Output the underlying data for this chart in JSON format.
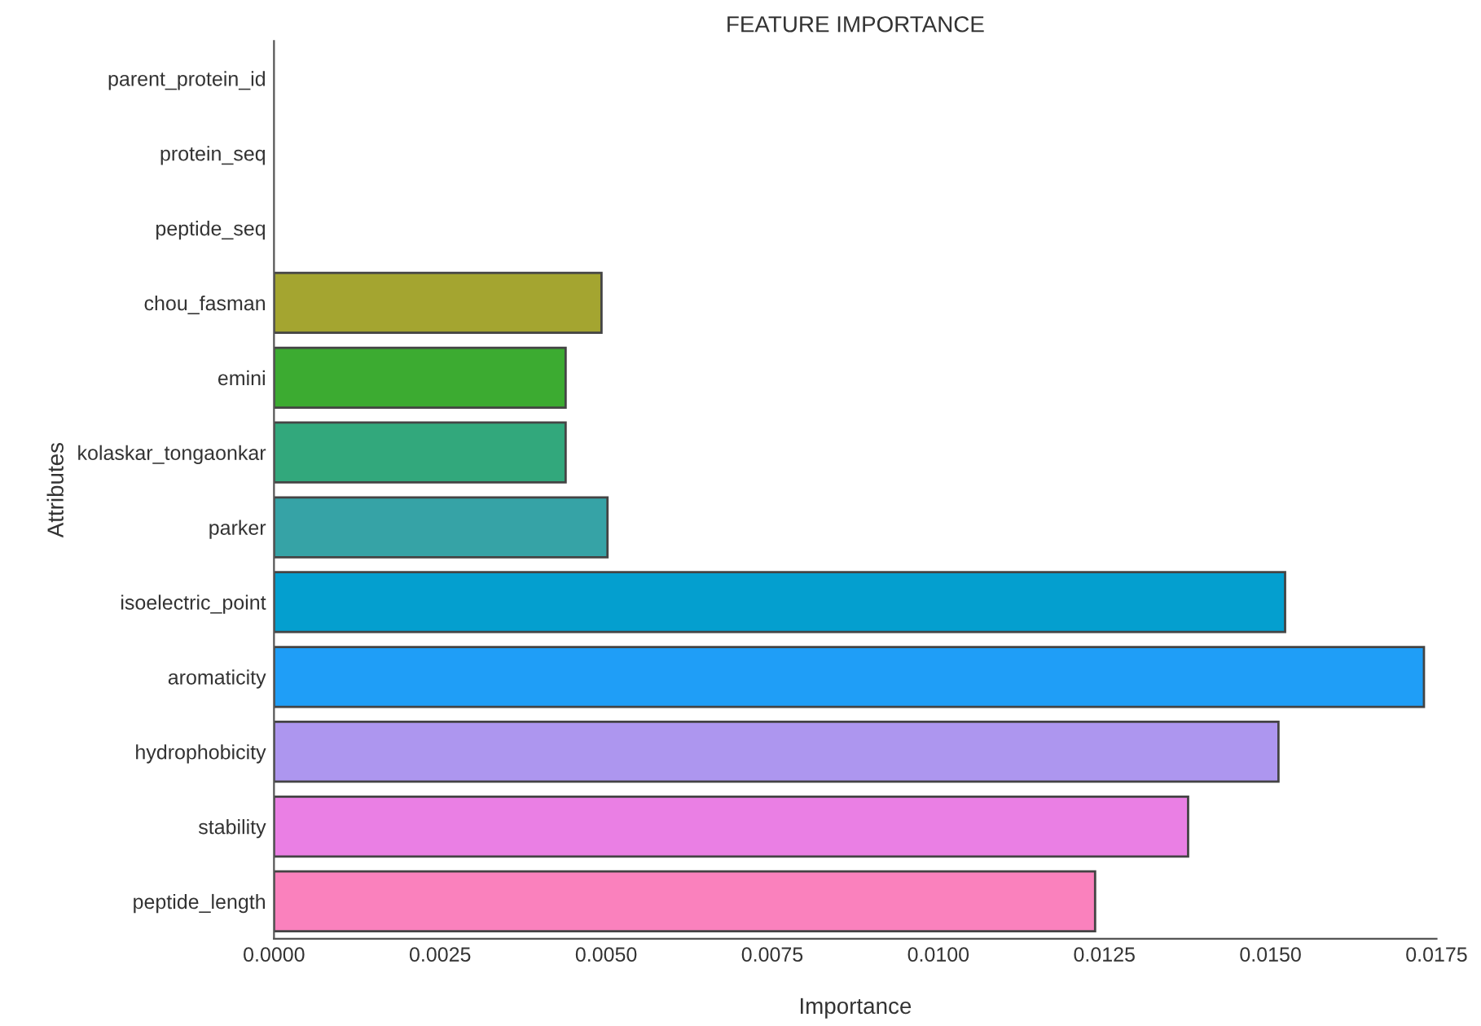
{
  "chart_data": {
    "type": "bar",
    "orientation": "horizontal",
    "title": "FEATURE IMPORTANCE",
    "xlabel": "Importance",
    "ylabel": "Attributes",
    "categories": [
      "parent_protein_id",
      "protein_seq",
      "peptide_seq",
      "chou_fasman",
      "emini",
      "kolaskar_tongaonkar",
      "parker",
      "isoelectric_point",
      "aromaticity",
      "hydrophobicity",
      "stability",
      "peptide_length"
    ],
    "values": [
      0,
      0,
      0,
      0.00493,
      0.00439,
      0.00439,
      0.00502,
      0.01522,
      0.01731,
      0.01512,
      0.01376,
      0.01236
    ],
    "colors": [
      null,
      null,
      null,
      "#a4a530",
      "#3cab31",
      "#32a87c",
      "#36a3a6",
      "#049fcf",
      "#1f9ef7",
      "#ad96ef",
      "#ea7fe4",
      "#fa81bd"
    ],
    "xlim": [
      0,
      0.0175
    ],
    "xticks": [
      {
        "value": 0,
        "label": "0.0000"
      },
      {
        "value": 0.0025,
        "label": "0.0025"
      },
      {
        "value": 0.005,
        "label": "0.0050"
      },
      {
        "value": 0.0075,
        "label": "0.0075"
      },
      {
        "value": 0.01,
        "label": "0.0100"
      },
      {
        "value": 0.0125,
        "label": "0.0125"
      },
      {
        "value": 0.015,
        "label": "0.0150"
      },
      {
        "value": 0.0175,
        "label": "0.0175"
      }
    ],
    "grid": false,
    "legend": false
  }
}
